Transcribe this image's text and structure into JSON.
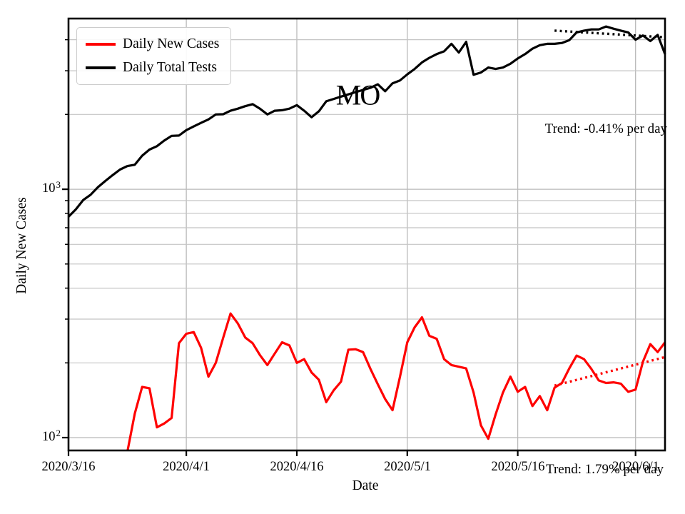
{
  "chart_data": {
    "type": "line",
    "region_label": "MO",
    "xlabel": "Date",
    "ylabel": "Daily New Cases",
    "yscale": "log",
    "grid": true,
    "legend_position": "upper-left",
    "x_axis": {
      "start_date": "2020/3/16",
      "end_day": 81,
      "ticks": [
        {
          "label": "2020/3/16",
          "day": 0
        },
        {
          "label": "2020/4/1",
          "day": 16
        },
        {
          "label": "2020/4/16",
          "day": 31
        },
        {
          "label": "2020/5/1",
          "day": 46
        },
        {
          "label": "2020/5/16",
          "day": 61
        },
        {
          "label": "2020/6/1",
          "day": 77
        }
      ]
    },
    "y_axis": {
      "range": [
        88.8,
        4865
      ],
      "ticks": [
        {
          "base": "10",
          "exp": "2",
          "value": 100
        },
        {
          "base": "10",
          "exp": "3",
          "value": 1000
        }
      ],
      "minor_gridlines": [
        200,
        300,
        400,
        500,
        600,
        700,
        800,
        900,
        2000,
        3000,
        4000
      ]
    },
    "series": [
      {
        "name": "Daily New Cases",
        "color": "#ff0000",
        "start_day": 8,
        "values": [
          88,
          125,
          160,
          158,
          110,
          114,
          120,
          240,
          262,
          266,
          230,
          176,
          200,
          252,
          316,
          288,
          253,
          240,
          215,
          196,
          218,
          242,
          235,
          200,
          207,
          183,
          171,
          139,
          155,
          168,
          226,
          227,
          221,
          189,
          164,
          143,
          129,
          175,
          242,
          278,
          305,
          257,
          250,
          207,
          196,
          193,
          190,
          152,
          112,
          99,
          124,
          152,
          176,
          153,
          160,
          134,
          147,
          129,
          159,
          166,
          190,
          214,
          207,
          189,
          170,
          166,
          167,
          165,
          153,
          156,
          202,
          238,
          221,
          242
        ]
      },
      {
        "name": "Daily Total Tests",
        "color": "#000000",
        "start_day": 0,
        "values": [
          775,
          830,
          905,
          950,
          1020,
          1080,
          1140,
          1200,
          1240,
          1255,
          1365,
          1445,
          1490,
          1570,
          1640,
          1645,
          1730,
          1790,
          1850,
          1910,
          2000,
          2005,
          2070,
          2110,
          2160,
          2200,
          2110,
          2000,
          2070,
          2080,
          2110,
          2180,
          2070,
          1950,
          2060,
          2260,
          2310,
          2360,
          2410,
          2460,
          2510,
          2560,
          2645,
          2480,
          2670,
          2740,
          2900,
          3050,
          3240,
          3380,
          3500,
          3590,
          3850,
          3550,
          3920,
          2890,
          2950,
          3090,
          3050,
          3090,
          3200,
          3360,
          3500,
          3680,
          3800,
          3850,
          3850,
          3880,
          3980,
          4280,
          4350,
          4400,
          4400,
          4520,
          4430,
          4350,
          4280,
          4000,
          4160,
          3950,
          4180,
          3500
        ]
      }
    ],
    "trend_lines": [
      {
        "label": "Trend: -0.41% per day",
        "series": "Daily Total Tests",
        "color": "#000000",
        "start_day": 66,
        "end_day": 81,
        "start_value": 4350,
        "end_value": 4090
      },
      {
        "label": "Trend: 1.79% per day",
        "series": "Daily New Cases",
        "color": "#ff0000",
        "start_day": 66,
        "end_day": 81,
        "start_value": 162,
        "end_value": 211
      }
    ]
  }
}
